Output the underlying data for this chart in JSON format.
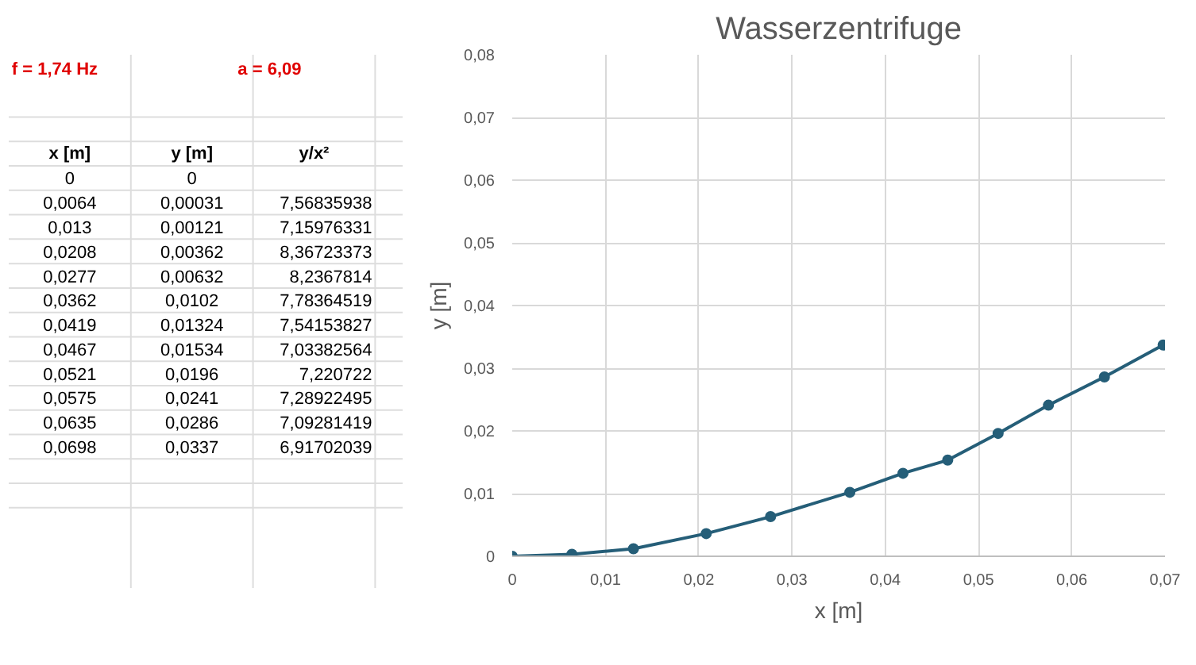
{
  "chart_data": {
    "type": "line",
    "title": "Wasserzentrifuge",
    "xlabel": "x [m]",
    "ylabel": "y [m]",
    "x": [
      0,
      0.0064,
      0.013,
      0.0208,
      0.0277,
      0.0362,
      0.0419,
      0.0467,
      0.0521,
      0.0575,
      0.0635,
      0.0698
    ],
    "series": [
      {
        "color": "#255e78",
        "values": [
          0,
          0.00031,
          0.00121,
          0.00362,
          0.00632,
          0.0102,
          0.01324,
          0.01534,
          0.0196,
          0.0241,
          0.0286,
          0.0337
        ]
      }
    ],
    "xlim": [
      0,
      0.07
    ],
    "xticks": [
      0,
      {
        "value": 0.01,
        "label": "0,01"
      },
      {
        "value": 0.02,
        "label": "0,02"
      },
      {
        "value": 0.03,
        "label": "0,03"
      },
      {
        "value": 0.04,
        "label": "0,04"
      },
      {
        "value": 0.05,
        "label": "0,05"
      },
      {
        "value": 0.06,
        "label": "0,06"
      },
      {
        "value": 0.07,
        "label": "0,07"
      }
    ],
    "ylim": [
      0,
      0.08
    ],
    "yticks": [
      0,
      {
        "value": 0.01,
        "label": "0,01"
      },
      {
        "value": 0.02,
        "label": "0,02"
      },
      {
        "value": 0.03,
        "label": "0,03"
      },
      {
        "value": 0.04,
        "label": "0,04"
      },
      {
        "value": 0.05,
        "label": "0,05"
      },
      {
        "value": 0.06,
        "label": "0,06"
      },
      {
        "value": 0.07,
        "label": "0,07"
      },
      {
        "value": 0.08,
        "label": "0,08"
      }
    ],
    "grid": true,
    "marker": "circle",
    "line_style": "solid",
    "annotations": [
      "f = 1,74 Hz",
      "a = 6,09",
      "x [m]",
      "y [m]",
      "y/x²",
      "0",
      "0,0064",
      "0,013",
      "0,0208",
      "0,0277",
      "0,0362",
      "0,0419",
      "0,0467",
      "0,0521",
      "0,0575",
      "0,0635",
      "0,0698",
      "0",
      "0,00031",
      "0,00121",
      "0,00362",
      "0,00632",
      "0,0102",
      "0,01324",
      "0,01534",
      "0,0196",
      "0,0241",
      "0,0286",
      "0,0337",
      "7,56835938",
      "7,15976331",
      "8,36723373",
      "8,2367814",
      "7,78364519",
      "7,54153827",
      "7,03382564",
      "7,220722",
      "7,28922495",
      "7,09281419",
      "6,91702039"
    ]
  }
}
